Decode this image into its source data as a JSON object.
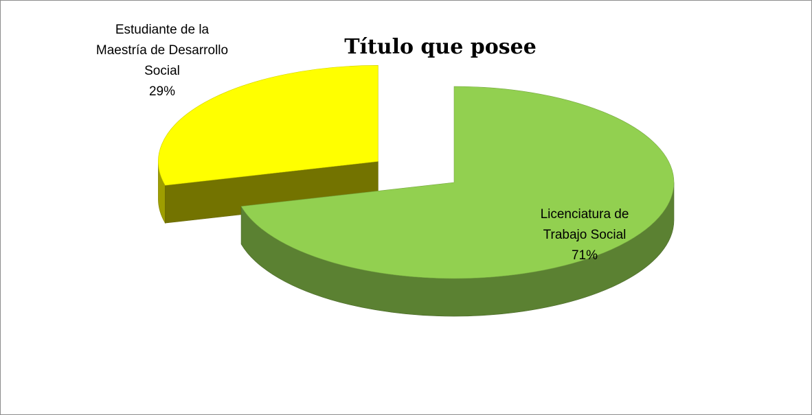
{
  "chart_data": {
    "type": "pie3d",
    "title": "Título que posee",
    "categories": [
      "Licenciatura de Trabajo Social",
      "Estudiante de la Maestría de Desarrollo Social"
    ],
    "values": [
      71,
      29
    ],
    "value_labels": [
      "71%",
      "29%"
    ],
    "colors": [
      "#92d050",
      "#ffff00"
    ]
  }
}
